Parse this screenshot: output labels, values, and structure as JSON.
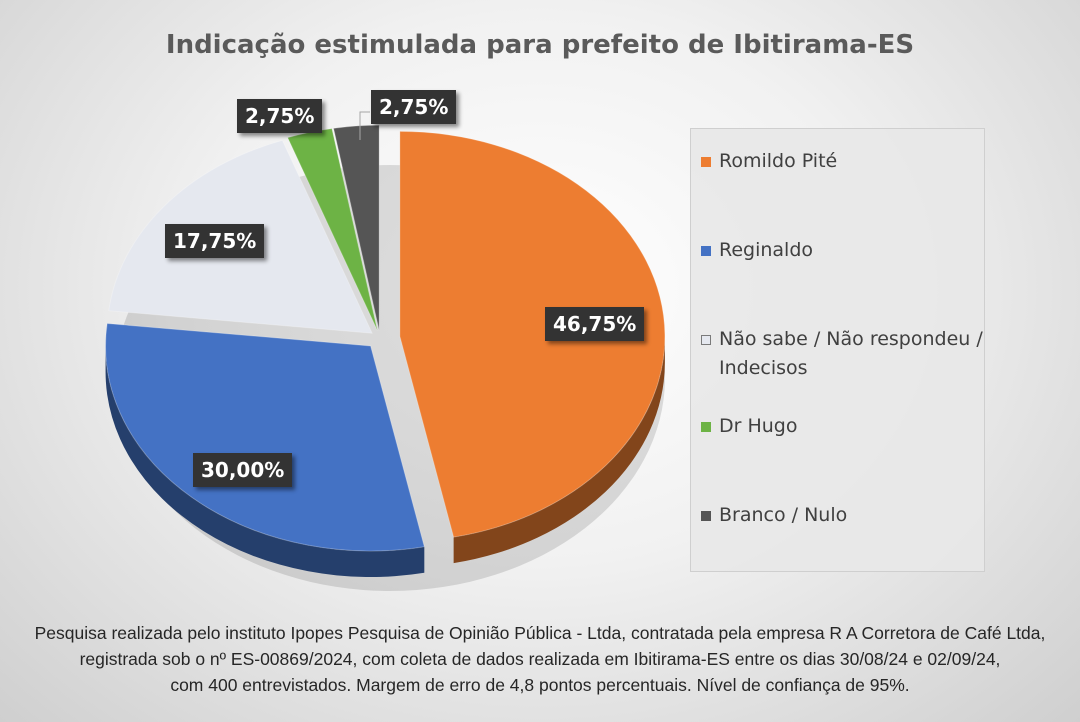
{
  "chart_data": {
    "type": "pie",
    "title": "Indicação estimulada para prefeito de Ibitirama-ES",
    "categories": [
      "Romildo Pité",
      "Reginaldo",
      "Não sabe / Não respondeu / Indecisos",
      "Dr Hugo",
      "Branco / Nulo"
    ],
    "values": [
      46.75,
      30.0,
      17.75,
      2.75,
      2.75
    ],
    "value_labels": [
      "46,75%",
      "30,00%",
      "17,75%",
      "2,75%",
      "2,75%"
    ],
    "colors": [
      "#ED7D31",
      "#4472C4",
      "#E5E8EF",
      "#6DB345",
      "#555555"
    ],
    "legend_placement": "right",
    "style": "3d-exploded"
  },
  "footnote": {
    "lines": [
      "Pesquisa realizada pelo instituto Ipopes Pesquisa de Opinião Pública - Ltda, contratada pela empresa R A Corretora de Café Ltda,",
      "registrada sob o nº ES-00869/2024, com coleta de dados realizada em Ibitirama-ES entre os dias 30/08/24 e 02/09/24,",
      "com 400 entrevistados. Margem de erro de 4,8 pontos percentuais. Nível de confiança de 95%."
    ]
  }
}
